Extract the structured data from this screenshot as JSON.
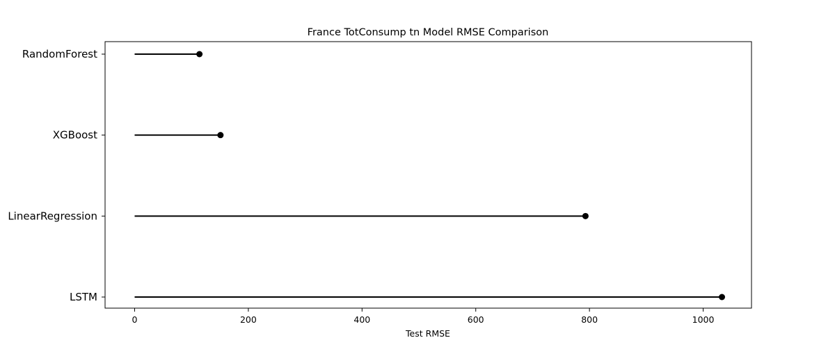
{
  "chart_data": {
    "type": "lollipop",
    "orientation": "horizontal",
    "title": "France TotConsump tn Model RMSE Comparison",
    "xlabel": "Test RMSE",
    "ylabel": "",
    "categories": [
      "RandomForest",
      "XGBoost",
      "LinearRegression",
      "LSTM"
    ],
    "values": [
      114,
      151,
      793,
      1033
    ],
    "xlim": [
      -52,
      1085
    ],
    "xticks": [
      0,
      200,
      400,
      600,
      800,
      1000
    ],
    "grid": false,
    "legend": "none",
    "colors": {
      "stem": "#000000",
      "marker": "#000000",
      "axes": "#000000"
    }
  }
}
